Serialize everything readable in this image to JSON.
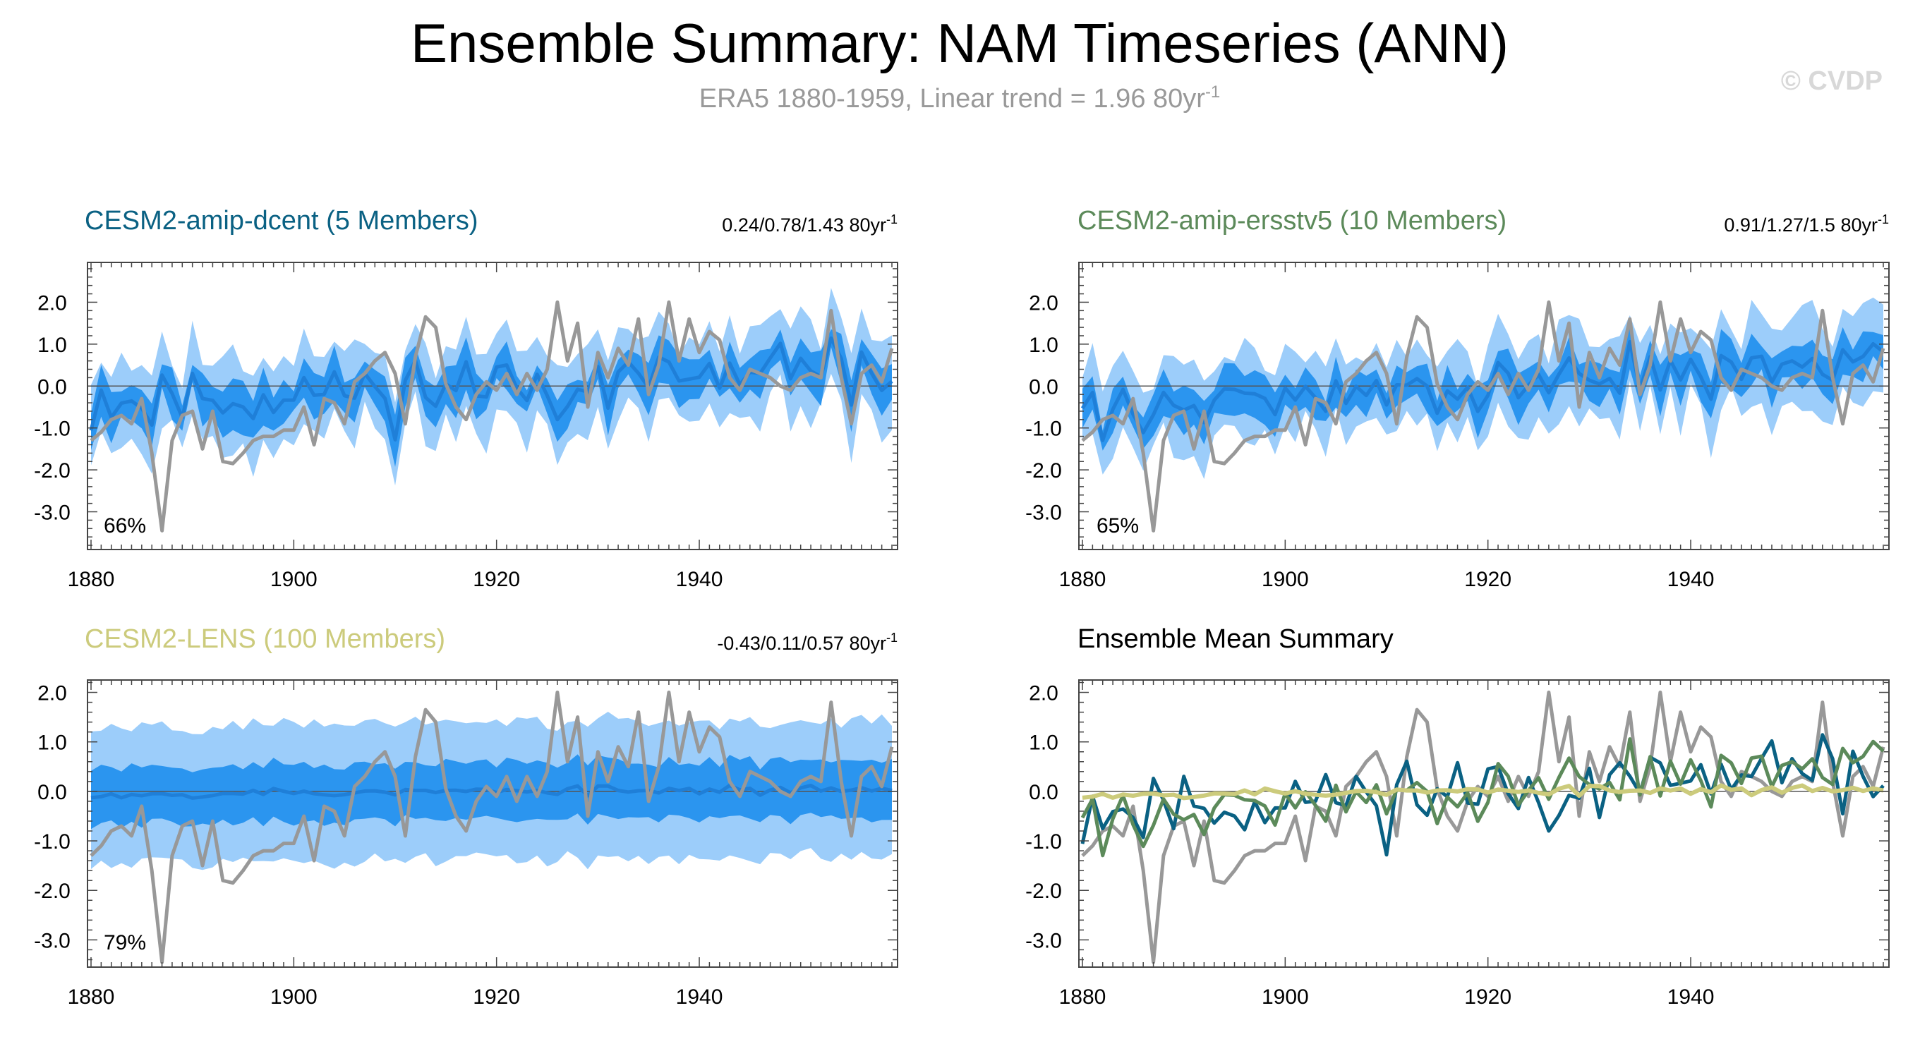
{
  "figure": {
    "title": "Ensemble Summary: NAM Timeseries (ANN)",
    "subtitle_main": "ERA5 1880-1959, Linear trend = 1.96 80yr",
    "subtitle_sup": "-1",
    "watermark": "© CVDP"
  },
  "colors": {
    "dcent": "#0a6183",
    "ersst": "#5c8a5a",
    "lens": "#cccb7c",
    "band_outer": "#9ccdfa",
    "band_inner": "#2b95ef",
    "ens_mean_line": "#1f7fd8",
    "obs": "#989898",
    "zero": "#555555"
  },
  "panels": {
    "p1": {
      "title": "CESM2-amip-dcent (5 Members)",
      "trend": "0.24/0.78/1.43 80yr",
      "trend_sup": "-1",
      "pct": "66%"
    },
    "p2": {
      "title": "CESM2-amip-ersstv5 (10 Members)",
      "trend": "0.91/1.27/1.5 80yr",
      "trend_sup": "-1",
      "pct": "65%"
    },
    "p3": {
      "title": "CESM2-LENS (100 Members)",
      "trend": "-0.43/0.11/0.57 80yr",
      "trend_sup": "-1",
      "pct": "79%"
    },
    "p4": {
      "title": "Ensemble Mean Summary"
    }
  },
  "chart_data": [
    {
      "type": "area",
      "panel": "p1",
      "title": "CESM2-amip-dcent (5 Members)",
      "x_start": 1880,
      "x_end": 1959,
      "ylim": [
        -3.9,
        2.95
      ],
      "yticks": [
        "2.0",
        "1.0",
        "0.0",
        "-1.0",
        "-2.0",
        "-3.0"
      ],
      "xticks": [
        "1880",
        "1900",
        "1920",
        "1940"
      ],
      "series": [
        "ensemble_range",
        "interquartile_range",
        "ensemble_mean",
        "ERA5"
      ]
    },
    {
      "type": "area",
      "panel": "p2",
      "title": "CESM2-amip-ersstv5 (10 Members)",
      "x_start": 1880,
      "x_end": 1959,
      "ylim": [
        -3.9,
        2.95
      ],
      "yticks": [
        "2.0",
        "1.0",
        "0.0",
        "-1.0",
        "-2.0",
        "-3.0"
      ],
      "xticks": [
        "1880",
        "1900",
        "1920",
        "1940"
      ],
      "series": [
        "ensemble_range",
        "interquartile_range",
        "ensemble_mean",
        "ERA5"
      ]
    },
    {
      "type": "area",
      "panel": "p3",
      "title": "CESM2-LENS (100 Members)",
      "x_start": 1880,
      "x_end": 1959,
      "ylim": [
        -3.55,
        2.25
      ],
      "yticks": [
        "2.0",
        "1.0",
        "0.0",
        "-1.0",
        "-2.0",
        "-3.0"
      ],
      "xticks": [
        "1880",
        "1900",
        "1920",
        "1940"
      ],
      "series": [
        "ensemble_range",
        "interquartile_range",
        "ensemble_mean",
        "ERA5"
      ]
    },
    {
      "type": "line",
      "panel": "p4",
      "title": "Ensemble Mean Summary",
      "x_start": 1880,
      "x_end": 1959,
      "ylim": [
        -3.55,
        2.25
      ],
      "yticks": [
        "2.0",
        "1.0",
        "0.0",
        "-1.0",
        "-2.0",
        "-3.0"
      ],
      "xticks": [
        "1880",
        "1900",
        "1920",
        "1940"
      ],
      "series": [
        "ERA5",
        "CESM2-amip-dcent",
        "CESM2-amip-ersstv5",
        "CESM2-LENS"
      ]
    }
  ]
}
